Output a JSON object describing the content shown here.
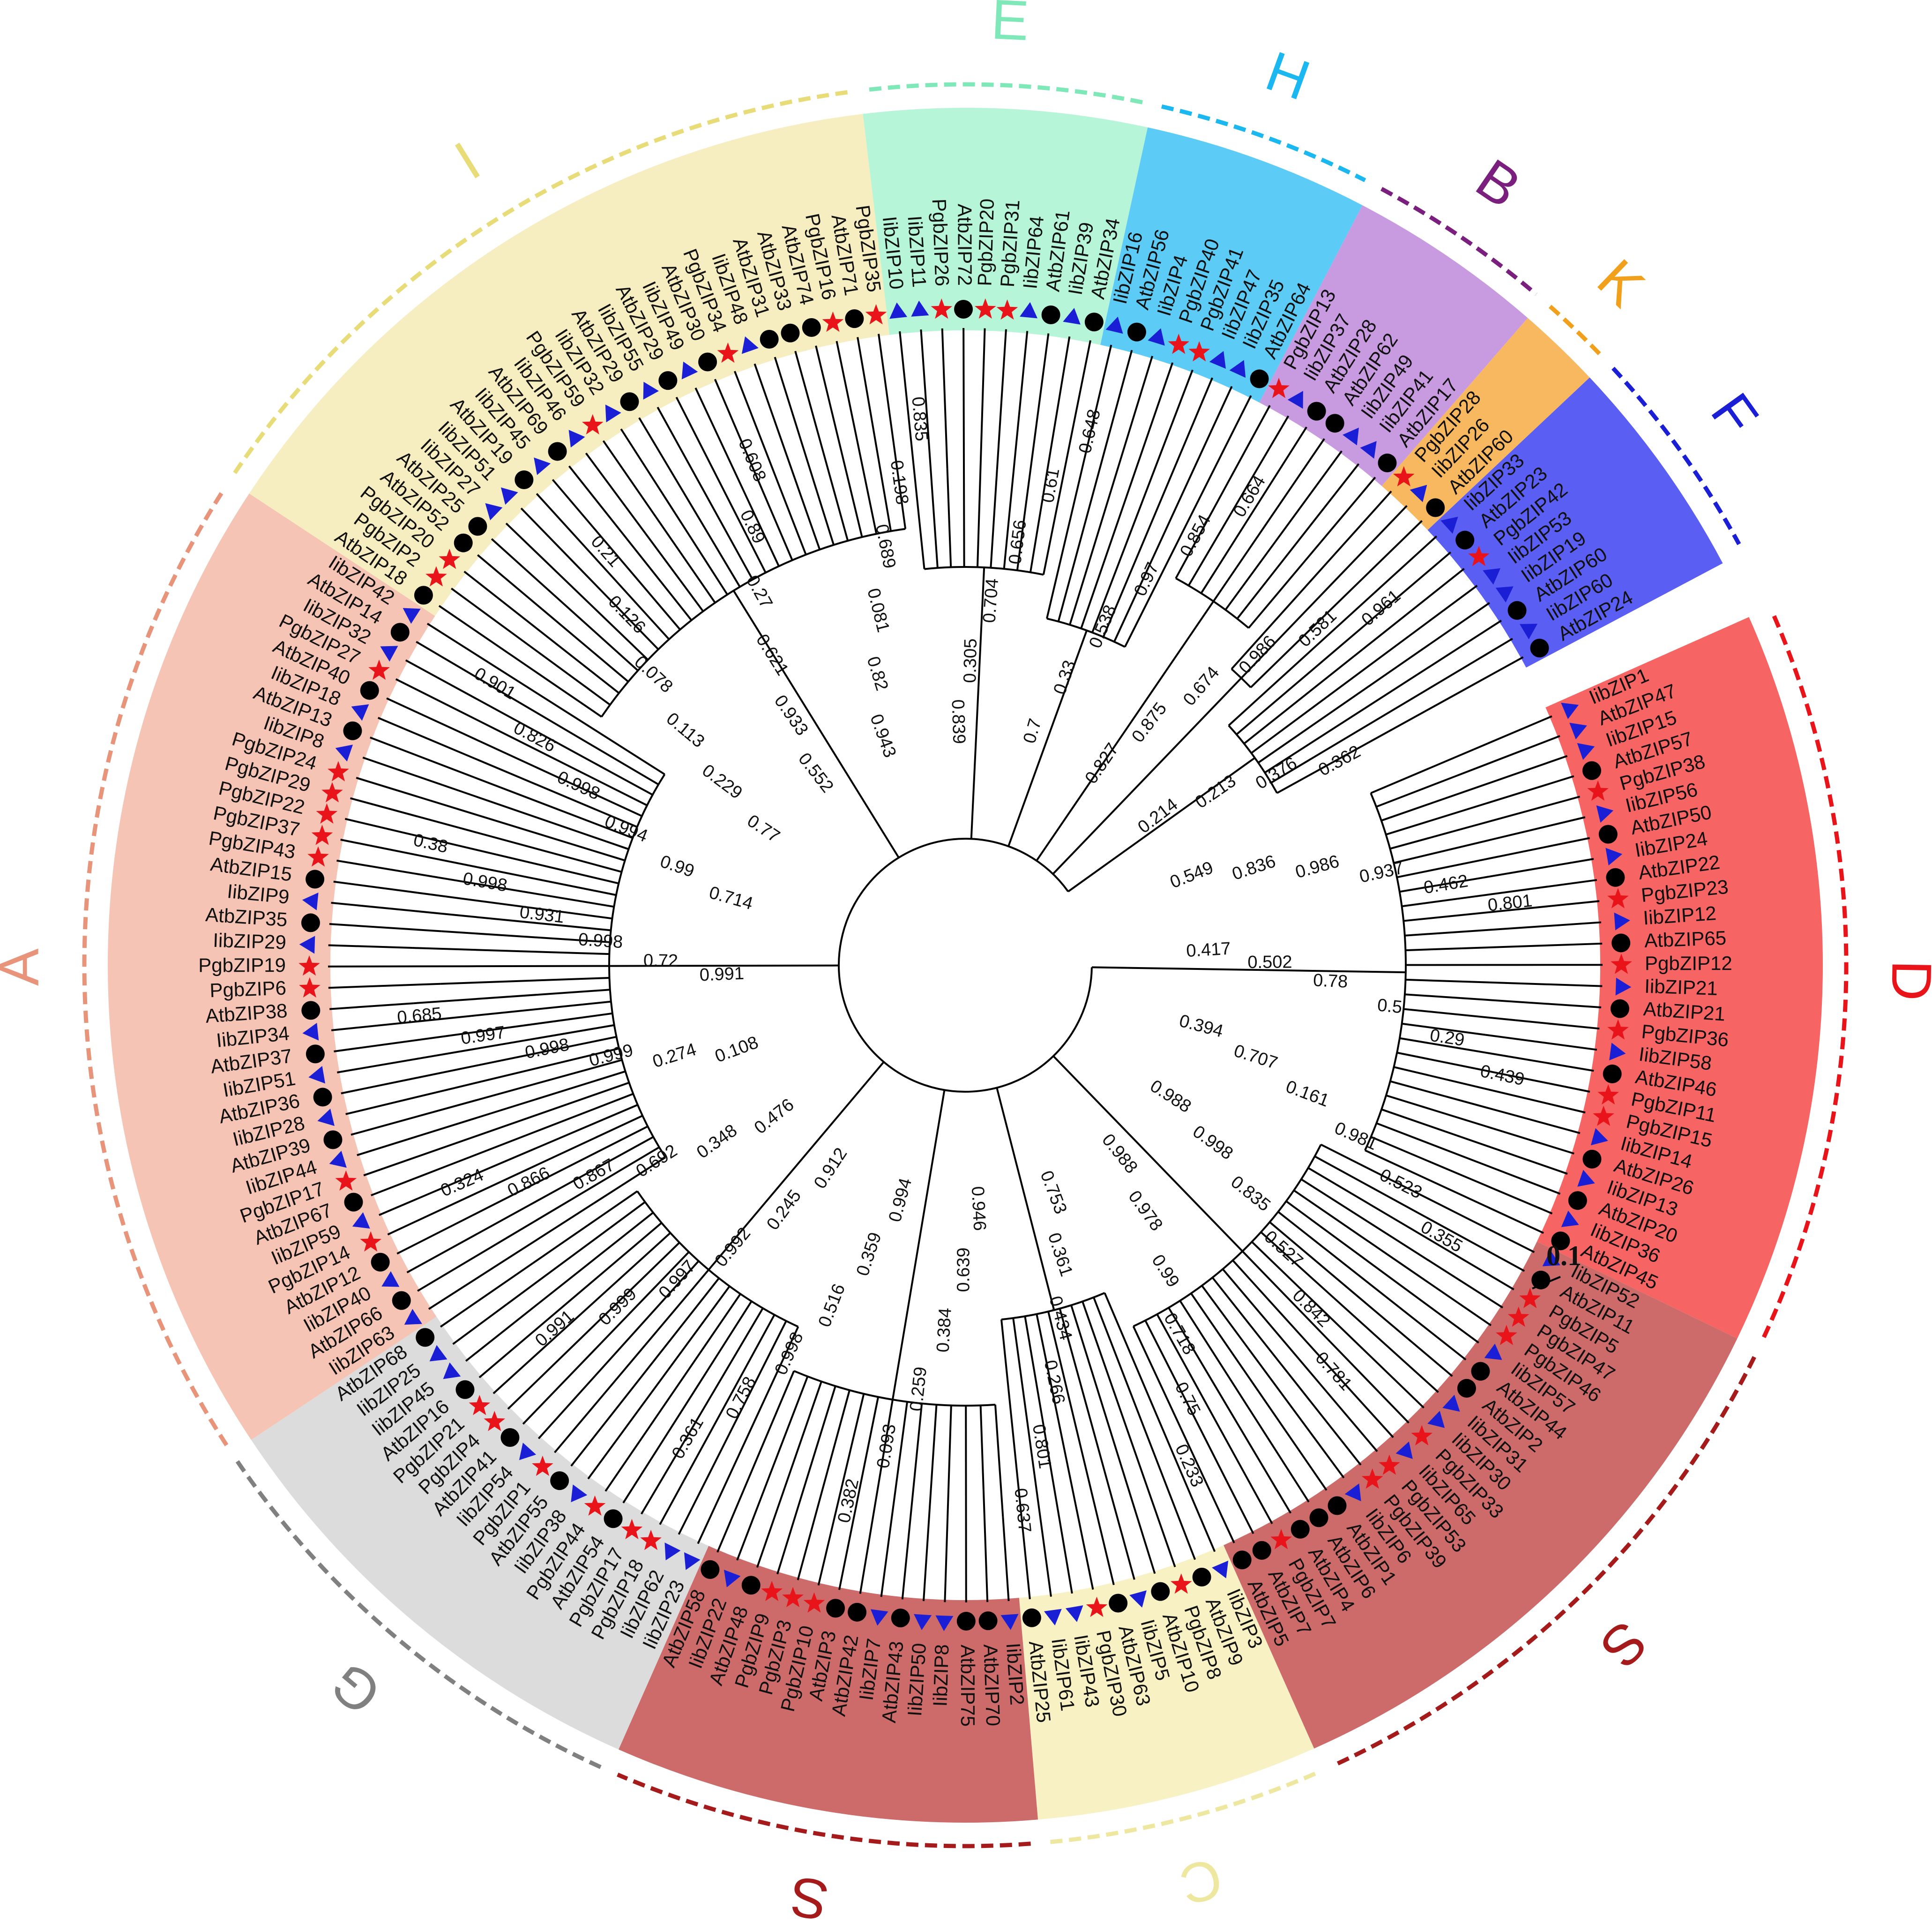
{
  "scale_bar": {
    "label": "0.1"
  },
  "colors": {
    "branch": "#000000",
    "marker_circle": "#000000",
    "marker_star": "#e8141a",
    "marker_triangle": "#1a1fd6"
  },
  "marker_legend_note": "",
  "groups": [
    {
      "letter": "D",
      "color": "#e8141a",
      "fill": "#f76464",
      "leaves": [
        {
          "name": "IibZIP1",
          "marker": "triangle"
        },
        {
          "name": "AtbZIP47",
          "marker": "triangle"
        },
        {
          "name": "IibZIP15",
          "marker": "triangle"
        },
        {
          "name": "AtbZIP57",
          "marker": "circle"
        },
        {
          "name": "PgbZIP38",
          "marker": "star"
        },
        {
          "name": "IibZIP56",
          "marker": "triangle"
        },
        {
          "name": "AtbZIP50",
          "marker": "circle"
        },
        {
          "name": "IibZIP24",
          "marker": "triangle"
        },
        {
          "name": "AtbZIP22",
          "marker": "circle"
        },
        {
          "name": "PgbZIP23",
          "marker": "star"
        },
        {
          "name": "IibZIP12",
          "marker": "triangle"
        },
        {
          "name": "AtbZIP65",
          "marker": "circle"
        },
        {
          "name": "PgbZIP12",
          "marker": "star"
        },
        {
          "name": "IibZIP21",
          "marker": "triangle"
        },
        {
          "name": "AtbZIP21",
          "marker": "circle"
        },
        {
          "name": "PgbZIP36",
          "marker": "star"
        },
        {
          "name": "IibZIP58",
          "marker": "triangle"
        },
        {
          "name": "AtbZIP46",
          "marker": "circle"
        },
        {
          "name": "PgbZIP11",
          "marker": "star"
        },
        {
          "name": "PgbZIP15",
          "marker": "star"
        },
        {
          "name": "IibZIP14",
          "marker": "triangle"
        },
        {
          "name": "AtbZIP26",
          "marker": "circle"
        },
        {
          "name": "IibZIP13",
          "marker": "triangle"
        },
        {
          "name": "AtbZIP20",
          "marker": "circle"
        },
        {
          "name": "IibZIP36",
          "marker": "triangle"
        },
        {
          "name": "AtbZIP45",
          "marker": "circle"
        }
      ]
    },
    {
      "letter": "S",
      "color": "#a51b1b",
      "fill": "#cd6b6b",
      "leaves": [
        {
          "name": "IibZIP52",
          "marker": "triangle"
        },
        {
          "name": "AtbZIP11",
          "marker": "circle"
        },
        {
          "name": "PgbZIP5",
          "marker": "star"
        },
        {
          "name": "PgbZIP47",
          "marker": "star"
        },
        {
          "name": "PgbZIP46",
          "marker": "star"
        },
        {
          "name": "IibZIP57",
          "marker": "triangle"
        },
        {
          "name": "AtbZIP44",
          "marker": "circle"
        },
        {
          "name": "AtbZIP2",
          "marker": "circle"
        },
        {
          "name": "IibZIP31",
          "marker": "triangle"
        },
        {
          "name": "IibZIP30",
          "marker": "triangle"
        },
        {
          "name": "PgbZIP33",
          "marker": "star"
        },
        {
          "name": "IibZIP65",
          "marker": "triangle"
        },
        {
          "name": "PgbZIP53",
          "marker": "star"
        },
        {
          "name": "PgbZIP39",
          "marker": "star"
        },
        {
          "name": "IibZIP6",
          "marker": "triangle"
        },
        {
          "name": "AtbZIP1",
          "marker": "circle"
        },
        {
          "name": "AtbZIP6",
          "marker": "circle"
        },
        {
          "name": "AtbZIP4",
          "marker": "circle"
        },
        {
          "name": "PgbZIP7",
          "marker": "star"
        },
        {
          "name": "AtbZIP7",
          "marker": "circle"
        },
        {
          "name": "AtbZIP5",
          "marker": "circle"
        }
      ]
    },
    {
      "letter": "C",
      "color": "#eee7a0",
      "fill": "#f8f1c4",
      "leaves": [
        {
          "name": "IibZIP3",
          "marker": "triangle"
        },
        {
          "name": "AtbZIP9",
          "marker": "circle"
        },
        {
          "name": "PgbZIP8",
          "marker": "star"
        },
        {
          "name": "AtbZIP10",
          "marker": "circle"
        },
        {
          "name": "IibZIP5",
          "marker": "triangle"
        },
        {
          "name": "AtbZIP63",
          "marker": "circle"
        },
        {
          "name": "PgbZIP30",
          "marker": "star"
        },
        {
          "name": "IibZIP43",
          "marker": "triangle"
        },
        {
          "name": "IibZIP61",
          "marker": "triangle"
        },
        {
          "name": "AtbZIP25",
          "marker": "circle"
        }
      ]
    },
    {
      "letter": "S",
      "color": "#a51b1b",
      "fill": "#cd6b6b",
      "leaves": [
        {
          "name": "IibZIP2",
          "marker": "triangle"
        },
        {
          "name": "AtbZIP70",
          "marker": "circle"
        },
        {
          "name": "AtbZIP75",
          "marker": "circle"
        },
        {
          "name": "IibZIP8",
          "marker": "triangle"
        },
        {
          "name": "IibZIP50",
          "marker": "triangle"
        },
        {
          "name": "AtbZIP43",
          "marker": "circle"
        },
        {
          "name": "IibZIP7",
          "marker": "triangle"
        },
        {
          "name": "AtbZIP42",
          "marker": "circle"
        },
        {
          "name": "AtbZIP3",
          "marker": "circle"
        },
        {
          "name": "PgbZIP10",
          "marker": "star"
        },
        {
          "name": "PgbZIP3",
          "marker": "star"
        },
        {
          "name": "PgbZIP9",
          "marker": "star"
        },
        {
          "name": "AtbZIP48",
          "marker": "circle"
        },
        {
          "name": "IibZIP22",
          "marker": "triangle"
        },
        {
          "name": "AtbZIP58",
          "marker": "circle"
        }
      ]
    },
    {
      "letter": "G",
      "color": "#808080",
      "fill": "#dcdcdc",
      "leaves": [
        {
          "name": "IibZIP23",
          "marker": "triangle"
        },
        {
          "name": "IibZIP62",
          "marker": "triangle"
        },
        {
          "name": "PgbZIP18",
          "marker": "star"
        },
        {
          "name": "PgbZIP17",
          "marker": "star"
        },
        {
          "name": "AtbZIP54",
          "marker": "circle"
        },
        {
          "name": "PgbZIP44",
          "marker": "star"
        },
        {
          "name": "IibZIP38",
          "marker": "triangle"
        },
        {
          "name": "AtbZIP55",
          "marker": "circle"
        },
        {
          "name": "PgbZIP1",
          "marker": "star"
        },
        {
          "name": "IibZIP54",
          "marker": "triangle"
        },
        {
          "name": "AtbZIP41",
          "marker": "circle"
        },
        {
          "name": "PgbZIP4",
          "marker": "star"
        },
        {
          "name": "PgbZIP21",
          "marker": "star"
        },
        {
          "name": "AtbZIP16",
          "marker": "circle"
        },
        {
          "name": "IibZIP45",
          "marker": "triangle"
        },
        {
          "name": "IibZIP25",
          "marker": "triangle"
        },
        {
          "name": "AtbZIP68",
          "marker": "circle"
        }
      ]
    },
    {
      "letter": "A",
      "color": "#e8947a",
      "fill": "#f5c4b4",
      "leaves": [
        {
          "name": "IibZIP63",
          "marker": "triangle"
        },
        {
          "name": "AtbZIP66",
          "marker": "circle"
        },
        {
          "name": "IibZIP40",
          "marker": "triangle"
        },
        {
          "name": "AtbZIP12",
          "marker": "circle"
        },
        {
          "name": "PgbZIP14",
          "marker": "star"
        },
        {
          "name": "IibZIP59",
          "marker": "triangle"
        },
        {
          "name": "AtbZIP67",
          "marker": "circle"
        },
        {
          "name": "PgbZIP17",
          "marker": "star"
        },
        {
          "name": "IibZIP44",
          "marker": "triangle"
        },
        {
          "name": "AtbZIP39",
          "marker": "circle"
        },
        {
          "name": "IibZIP28",
          "marker": "triangle"
        },
        {
          "name": "AtbZIP36",
          "marker": "circle"
        },
        {
          "name": "IibZIP51",
          "marker": "triangle"
        },
        {
          "name": "AtbZIP37",
          "marker": "circle"
        },
        {
          "name": "IibZIP34",
          "marker": "triangle"
        },
        {
          "name": "AtbZIP38",
          "marker": "circle"
        },
        {
          "name": "PgbZIP6",
          "marker": "star"
        },
        {
          "name": "PgbZIP19",
          "marker": "star"
        },
        {
          "name": "IibZIP29",
          "marker": "triangle"
        },
        {
          "name": "AtbZIP35",
          "marker": "circle"
        },
        {
          "name": "IibZIP9",
          "marker": "triangle"
        },
        {
          "name": "AtbZIP15",
          "marker": "circle"
        },
        {
          "name": "PgbZIP43",
          "marker": "star"
        },
        {
          "name": "PgbZIP37",
          "marker": "star"
        },
        {
          "name": "PgbZIP22",
          "marker": "star"
        },
        {
          "name": "PgbZIP29",
          "marker": "star"
        },
        {
          "name": "PgbZIP24",
          "marker": "star"
        },
        {
          "name": "IibZIP8",
          "marker": "triangle"
        },
        {
          "name": "AtbZIP13",
          "marker": "circle"
        },
        {
          "name": "IibZIP18",
          "marker": "triangle"
        },
        {
          "name": "AtbZIP40",
          "marker": "circle"
        },
        {
          "name": "PgbZIP27",
          "marker": "star"
        },
        {
          "name": "IibZIP32",
          "marker": "triangle"
        },
        {
          "name": "AtbZIP14",
          "marker": "circle"
        },
        {
          "name": "IibZIP42",
          "marker": "triangle"
        }
      ]
    },
    {
      "letter": "I",
      "color": "#e8dc78",
      "fill": "#f6eec0",
      "leaves": [
        {
          "name": "AtbZIP18",
          "marker": "circle"
        },
        {
          "name": "PgbZIP2",
          "marker": "star"
        },
        {
          "name": "PgbZIP20",
          "marker": "star"
        },
        {
          "name": "AtbZIP52",
          "marker": "circle"
        },
        {
          "name": "AtbZIP25",
          "marker": "circle"
        },
        {
          "name": "IibZIP27",
          "marker": "triangle"
        },
        {
          "name": "IibZIP51",
          "marker": "triangle"
        },
        {
          "name": "AtbZIP19",
          "marker": "circle"
        },
        {
          "name": "IibZIP45",
          "marker": "triangle"
        },
        {
          "name": "AtbZIP69",
          "marker": "circle"
        },
        {
          "name": "IibZIP46",
          "marker": "triangle"
        },
        {
          "name": "PgbZIP59",
          "marker": "star"
        },
        {
          "name": "IibZIP32",
          "marker": "triangle"
        },
        {
          "name": "AtbZIP29",
          "marker": "circle"
        },
        {
          "name": "IibZIP55",
          "marker": "triangle"
        },
        {
          "name": "AtbZIP29",
          "marker": "circle"
        },
        {
          "name": "IibZIP49",
          "marker": "triangle"
        },
        {
          "name": "AtbZIP30",
          "marker": "circle"
        },
        {
          "name": "PgbZIP34",
          "marker": "star"
        },
        {
          "name": "IibZIP48",
          "marker": "triangle"
        },
        {
          "name": "AtbZIP31",
          "marker": "circle"
        },
        {
          "name": "AtbZIP33",
          "marker": "circle"
        },
        {
          "name": "AtbZIP74",
          "marker": "circle"
        },
        {
          "name": "PgbZIP16",
          "marker": "star"
        },
        {
          "name": "AtbZIP71",
          "marker": "circle"
        },
        {
          "name": "PgbZIP35",
          "marker": "star"
        }
      ]
    },
    {
      "letter": "E",
      "color": "#7ee8b8",
      "fill": "#b6f5d8",
      "leaves": [
        {
          "name": "IibZIP10",
          "marker": "triangle"
        },
        {
          "name": "IibZIP11",
          "marker": "triangle"
        },
        {
          "name": "PgbZIP26",
          "marker": "star"
        },
        {
          "name": "AtbZIP72",
          "marker": "circle"
        },
        {
          "name": "PgbZIP20",
          "marker": "star"
        },
        {
          "name": "PgbZIP31",
          "marker": "star"
        },
        {
          "name": "IibZIP64",
          "marker": "triangle"
        },
        {
          "name": "AtbZIP61",
          "marker": "circle"
        },
        {
          "name": "IibZIP39",
          "marker": "triangle"
        },
        {
          "name": "AtbZIP34",
          "marker": "circle"
        }
      ]
    },
    {
      "letter": "H",
      "color": "#1ab7f0",
      "fill": "#5ccbf6",
      "leaves": [
        {
          "name": "IibZIP16",
          "marker": "triangle"
        },
        {
          "name": "AtbZIP56",
          "marker": "circle"
        },
        {
          "name": "IibZIP4",
          "marker": "triangle"
        },
        {
          "name": "PgbZIP40",
          "marker": "star"
        },
        {
          "name": "PgbZIP41",
          "marker": "star"
        },
        {
          "name": "IibZIP47",
          "marker": "triangle"
        },
        {
          "name": "IibZIP35",
          "marker": "triangle"
        },
        {
          "name": "AtbZIP64",
          "marker": "circle"
        }
      ]
    },
    {
      "letter": "B",
      "color": "#7a1f7e",
      "fill": "#c89ae0",
      "leaves": [
        {
          "name": "PgbZIP13",
          "marker": "star"
        },
        {
          "name": "IibZIP37",
          "marker": "triangle"
        },
        {
          "name": "AtbZIP28",
          "marker": "circle"
        },
        {
          "name": "AtbZIP62",
          "marker": "circle"
        },
        {
          "name": "IibZIP49",
          "marker": "triangle"
        },
        {
          "name": "IibZIP41",
          "marker": "triangle"
        },
        {
          "name": "AtbZIP17",
          "marker": "circle"
        }
      ]
    },
    {
      "letter": "K",
      "color": "#f0a01a",
      "fill": "#f8b860",
      "leaves": [
        {
          "name": "PgbZIP28",
          "marker": "star"
        },
        {
          "name": "IibZIP26",
          "marker": "triangle"
        },
        {
          "name": "AtbZIP60",
          "marker": "circle"
        }
      ]
    },
    {
      "letter": "F",
      "color": "#1a1fd6",
      "fill": "#5a5ef2",
      "leaves": [
        {
          "name": "IibZIP33",
          "marker": "triangle"
        },
        {
          "name": "AtbZIP23",
          "marker": "circle"
        },
        {
          "name": "PgbZIP42",
          "marker": "star"
        },
        {
          "name": "IibZIP53",
          "marker": "triangle"
        },
        {
          "name": "IibZIP19",
          "marker": "triangle"
        },
        {
          "name": "AtbZIP60",
          "marker": "circle"
        },
        {
          "name": "IibZIP60",
          "marker": "triangle"
        },
        {
          "name": "AtbZIP24",
          "marker": "circle"
        }
      ]
    }
  ],
  "bootstrap_values": [
    "0.549",
    "0.836",
    "0.986",
    "0.937",
    "0.462",
    "0.801",
    "0.417",
    "0.502",
    "0.78",
    "0.5",
    "0.29",
    "0.439",
    "0.394",
    "0.707",
    "0.161",
    "0.981",
    "0.523",
    "0.355",
    "0.988",
    "0.998",
    "0.835",
    "0.527",
    "0.842",
    "0.781",
    "0.988",
    "0.978",
    "0.99",
    "0.718",
    "0.75",
    "0.233",
    "0.753",
    "0.361",
    "0.434",
    "0.266",
    "0.801",
    "0.637",
    "0.946",
    "0.639",
    "0.384",
    "0.259",
    "0.093",
    "0.382",
    "0.994",
    "0.359",
    "0.516",
    "0.998",
    "0.758",
    "0.361",
    "0.912",
    "0.245",
    "0.992",
    "0.997",
    "0.999",
    "0.991",
    "0.476",
    "0.348",
    "0.692",
    "0.867",
    "0.866",
    "0.324",
    "0.108",
    "0.274",
    "0.999",
    "0.998",
    "0.997",
    "0.685",
    "0.991",
    "0.72",
    "0.998",
    "0.931",
    "0.998",
    "0.38",
    "0.714",
    "0.99",
    "0.994",
    "0.998",
    "0.826",
    "0.901",
    "0.77",
    "0.229",
    "0.113",
    "0.078",
    "0.126",
    "0.21",
    "0.552",
    "0.933",
    "0.621",
    "0.27",
    "0.89",
    "0.608",
    "0.943",
    "0.82",
    "0.081",
    "0.689",
    "0.198",
    "0.835",
    "0.839",
    "0.305",
    "0.704",
    "0.656",
    "0.61",
    "0.648",
    "0.7",
    "0.33",
    "0.538",
    "0.97",
    "0.854",
    "0.664",
    "0.827",
    "0.875",
    "0.674",
    "0.986",
    "0.581",
    "0.961",
    "0.214",
    "0.213",
    "0.376",
    "0.362"
  ]
}
